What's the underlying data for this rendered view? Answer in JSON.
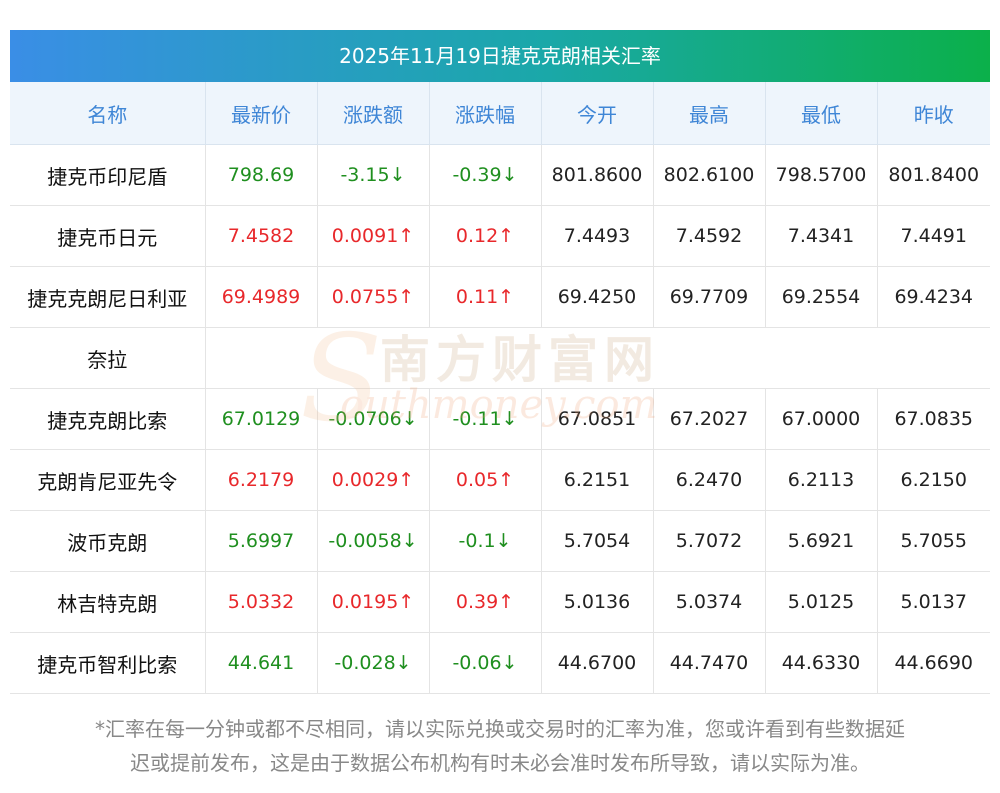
{
  "title": "2025年11月19日捷克克朗相关汇率",
  "headers": [
    "名称",
    "最新价",
    "涨跌额",
    "涨跌幅",
    "今开",
    "最高",
    "最低",
    "昨收"
  ],
  "rows": [
    {
      "name": "捷克币印尼盾",
      "latest": "798.69",
      "change": "-3.15↓",
      "pct": "-0.39↓",
      "open": "801.8600",
      "high": "802.6100",
      "low": "798.5700",
      "prev": "801.8400",
      "dir": "down"
    },
    {
      "name": "捷克币日元",
      "latest": "7.4582",
      "change": "0.0091↑",
      "pct": "0.12↑",
      "open": "7.4493",
      "high": "7.4592",
      "low": "7.4341",
      "prev": "7.4491",
      "dir": "up"
    },
    {
      "name": "捷克克朗尼日利亚",
      "name_cont": "奈拉",
      "latest": "69.4989",
      "change": "0.0755↑",
      "pct": "0.11↑",
      "open": "69.4250",
      "high": "69.7709",
      "low": "69.2554",
      "prev": "69.4234",
      "dir": "up"
    },
    {
      "name": "捷克克朗比索",
      "latest": "67.0129",
      "change": "-0.0706↓",
      "pct": "-0.11↓",
      "open": "67.0851",
      "high": "67.2027",
      "low": "67.0000",
      "prev": "67.0835",
      "dir": "down"
    },
    {
      "name": "克朗肯尼亚先令",
      "latest": "6.2179",
      "change": "0.0029↑",
      "pct": "0.05↑",
      "open": "6.2151",
      "high": "6.2470",
      "low": "6.2113",
      "prev": "6.2150",
      "dir": "up"
    },
    {
      "name": "波币克朗",
      "latest": "5.6997",
      "change": "-0.0058↓",
      "pct": "-0.1↓",
      "open": "5.7054",
      "high": "5.7072",
      "low": "5.6921",
      "prev": "5.7055",
      "dir": "down"
    },
    {
      "name": "林吉特克朗",
      "latest": "5.0332",
      "change": "0.0195↑",
      "pct": "0.39↑",
      "open": "5.0136",
      "high": "5.0374",
      "low": "5.0125",
      "prev": "5.0137",
      "dir": "up"
    },
    {
      "name": "捷克币智利比索",
      "latest": "44.641",
      "change": "-0.028↓",
      "pct": "-0.06↓",
      "open": "44.6700",
      "high": "44.7470",
      "low": "44.6330",
      "prev": "44.6690",
      "dir": "down"
    }
  ],
  "note_line1": "*汇率在每一分钟或都不尽相同，请以实际兑换或交易时的汇率为准，您或许看到有些数据延",
  "note_line2": "迟或提前发布，这是由于数据公布机构有时未必会准时发布所导致，请以实际为准。",
  "watermark": {
    "cn": "南方财富网",
    "en": "outhmoney.com",
    "s": "S"
  },
  "colors": {
    "up": "#e8282b",
    "down": "#1f8f1f",
    "header_text": "#3f86d6",
    "banner_start": "#3a8ee6",
    "banner_end": "#0bb04a"
  }
}
